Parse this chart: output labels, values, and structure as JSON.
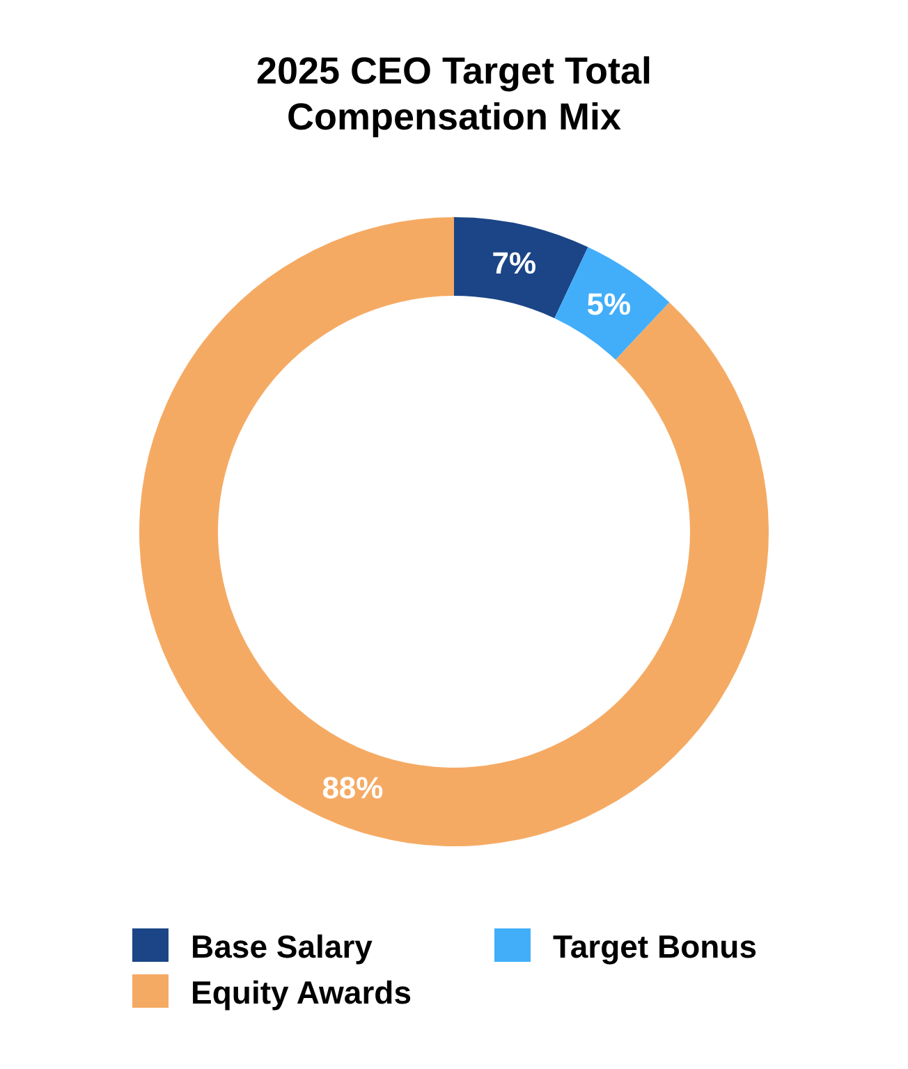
{
  "chart_data": {
    "type": "donut",
    "title": "2025 CEO Target Total Compensation Mix",
    "categories": [
      "Base Salary",
      "Target Bonus",
      "Equity Awards"
    ],
    "values": [
      7,
      5,
      88
    ],
    "colors": [
      "#1b4586",
      "#42aefa",
      "#f5aa63"
    ],
    "value_labels": [
      "7%",
      "5%",
      "88%"
    ],
    "legend": "bottom"
  }
}
